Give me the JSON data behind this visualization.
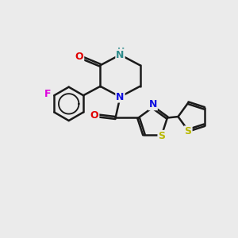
{
  "bg_color": "#ebebeb",
  "bond_color": "#1a1a1a",
  "bond_width": 1.8,
  "atom_colors": {
    "O": "#e00000",
    "N_blue": "#1010e0",
    "NH": "#2e8b8b",
    "F": "#dd00dd",
    "S": "#b8b800",
    "C": "#1a1a1a"
  },
  "figsize": [
    3.0,
    3.0
  ],
  "dpi": 100,
  "xlim": [
    0,
    10
  ],
  "ylim": [
    0,
    10
  ]
}
